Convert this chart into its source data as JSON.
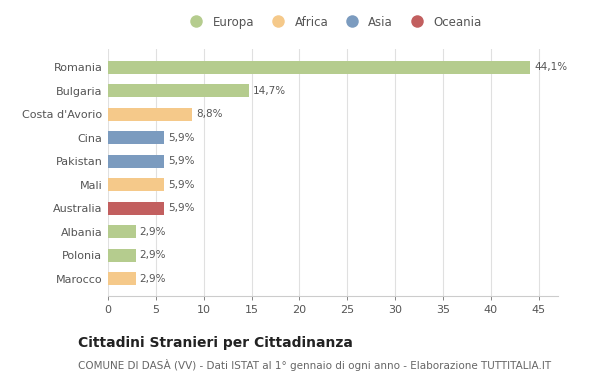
{
  "categories": [
    "Romania",
    "Bulgaria",
    "Costa d'Avorio",
    "Cina",
    "Pakistan",
    "Mali",
    "Australia",
    "Albania",
    "Polonia",
    "Marocco"
  ],
  "values": [
    44.1,
    14.7,
    8.8,
    5.9,
    5.9,
    5.9,
    5.9,
    2.9,
    2.9,
    2.9
  ],
  "labels": [
    "44,1%",
    "14,7%",
    "8,8%",
    "5,9%",
    "5,9%",
    "5,9%",
    "5,9%",
    "2,9%",
    "2,9%",
    "2,9%"
  ],
  "colors": [
    "#b5cc8e",
    "#b5cc8e",
    "#f5c98a",
    "#7b9bbf",
    "#7b9bbf",
    "#f5c98a",
    "#c25f5f",
    "#b5cc8e",
    "#b5cc8e",
    "#f5c98a"
  ],
  "legend_labels": [
    "Europa",
    "Africa",
    "Asia",
    "Oceania"
  ],
  "legend_colors": [
    "#b5cc8e",
    "#f5c98a",
    "#7b9bbf",
    "#c25f5f"
  ],
  "title": "Cittadini Stranieri per Cittadinanza",
  "subtitle": "COMUNE DI DASÀ (VV) - Dati ISTAT al 1° gennaio di ogni anno - Elaborazione TUTTITALIA.IT",
  "xlim": [
    0,
    47
  ],
  "xticks": [
    0,
    5,
    10,
    15,
    20,
    25,
    30,
    35,
    40,
    45
  ],
  "fig_bg_color": "#ffffff",
  "plot_bg_color": "#ffffff",
  "grid_color": "#e0e0e0",
  "title_fontsize": 10,
  "subtitle_fontsize": 7.5,
  "label_fontsize": 7.5,
  "tick_fontsize": 8,
  "legend_fontsize": 8.5
}
